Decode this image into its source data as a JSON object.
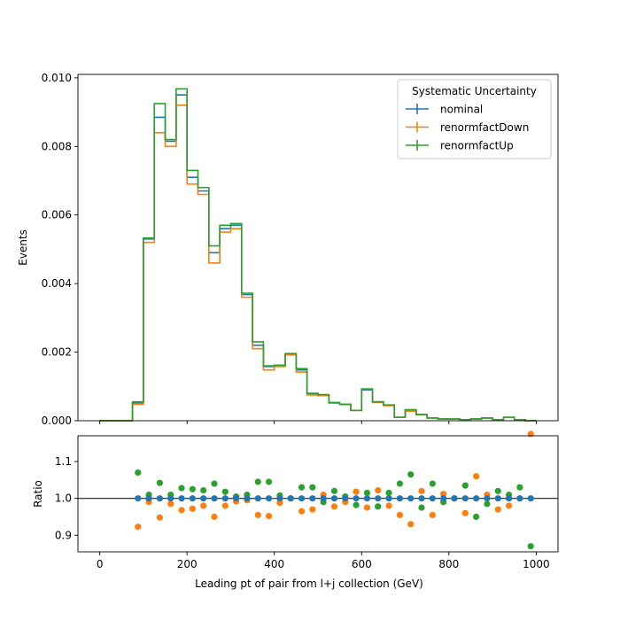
{
  "chart_data": [
    {
      "type": "line",
      "style": "step-histogram",
      "xlabel": "",
      "ylabel": "Events",
      "xlim": [
        -50,
        1050
      ],
      "ylim": [
        0,
        0.0101
      ],
      "x_ticks": [
        "0",
        "200",
        "400",
        "600",
        "800",
        "1000"
      ],
      "x_tick_values": [
        0,
        200,
        400,
        600,
        800,
        1000
      ],
      "y_ticks": [
        "0.000",
        "0.002",
        "0.004",
        "0.006",
        "0.008",
        "0.010"
      ],
      "y_tick_values": [
        0,
        0.002,
        0.004,
        0.006,
        0.008,
        0.01
      ],
      "bin_edges": [
        0,
        25,
        50,
        75,
        100,
        125,
        150,
        175,
        200,
        225,
        250,
        275,
        300,
        325,
        350,
        375,
        400,
        425,
        450,
        475,
        500,
        525,
        550,
        575,
        600,
        625,
        650,
        675,
        700,
        725,
        750,
        775,
        800,
        825,
        850,
        875,
        900,
        925,
        950,
        975,
        1000
      ],
      "legend": {
        "title": "Systematic Uncertainty",
        "placement": "top-right"
      },
      "series": [
        {
          "name": "nominal",
          "color": "#1f77b4",
          "values": [
            0,
            0,
            0,
            0.00052,
            0.0053,
            0.00885,
            0.00815,
            0.0095,
            0.0071,
            0.0067,
            0.0049,
            0.0056,
            0.0057,
            0.00368,
            0.0022,
            0.00158,
            0.0016,
            0.00195,
            0.00148,
            0.00078,
            0.00075,
            0.00052,
            0.00048,
            0.0003,
            0.0009,
            0.00055,
            0.00045,
            0.0001,
            0.0003,
            0.00018,
            8e-05,
            5e-05,
            5e-05,
            3e-05,
            5e-05,
            8e-05,
            3e-05,
            0.0001,
            3e-05,
            0
          ]
        },
        {
          "name": "renormfactDown",
          "color": "#ff7f0e",
          "values": [
            0,
            0,
            0,
            0.00048,
            0.0052,
            0.0084,
            0.008,
            0.0092,
            0.0069,
            0.0066,
            0.0046,
            0.0055,
            0.0056,
            0.0036,
            0.0021,
            0.00148,
            0.00158,
            0.00192,
            0.00142,
            0.00075,
            0.00073,
            0.00051,
            0.00047,
            0.0003,
            0.00092,
            0.00053,
            0.00044,
            0.0001,
            0.00028,
            0.00018,
            8e-05,
            5e-05,
            5e-05,
            3e-05,
            5e-05,
            8e-05,
            3e-05,
            0.0001,
            3e-05,
            0
          ]
        },
        {
          "name": "renormfactUp",
          "color": "#2ca02c",
          "values": [
            0,
            0,
            0,
            0.00055,
            0.00533,
            0.00925,
            0.0082,
            0.00968,
            0.0073,
            0.0068,
            0.0051,
            0.0057,
            0.00575,
            0.00372,
            0.0023,
            0.0016,
            0.00162,
            0.00196,
            0.00152,
            0.0008,
            0.00076,
            0.00053,
            0.00048,
            0.0003,
            0.00093,
            0.00055,
            0.00046,
            0.0001,
            0.00032,
            0.00018,
            8e-05,
            5e-05,
            5e-05,
            3e-05,
            5e-05,
            8e-05,
            3e-05,
            0.0001,
            3e-05,
            0
          ]
        }
      ]
    },
    {
      "type": "scatter",
      "xlabel": "Leading pt of pair from l+j collection (GeV)",
      "ylabel": "Ratio",
      "xlim": [
        -50,
        1050
      ],
      "ylim": [
        0.855,
        1.17
      ],
      "x_ticks": [
        "0",
        "200",
        "400",
        "600",
        "800",
        "1000"
      ],
      "x_tick_values": [
        0,
        200,
        400,
        600,
        800,
        1000
      ],
      "y_ticks": [
        "0.9",
        "1.0",
        "1.1"
      ],
      "y_tick_values": [
        0.9,
        1.0,
        1.1
      ],
      "reference_line": 1.0,
      "x": [
        87.5,
        112.5,
        137.5,
        162.5,
        187.5,
        212.5,
        237.5,
        262.5,
        287.5,
        312.5,
        337.5,
        362.5,
        387.5,
        412.5,
        437.5,
        462.5,
        487.5,
        512.5,
        537.5,
        562.5,
        587.5,
        612.5,
        637.5,
        662.5,
        687.5,
        712.5,
        737.5,
        762.5,
        787.5,
        812.5,
        837.5,
        862.5,
        887.5,
        912.5,
        937.5,
        962.5,
        987.5
      ],
      "series": [
        {
          "name": "nominal",
          "color": "#1f77b4",
          "values": [
            1,
            1,
            1,
            1,
            1,
            1,
            1,
            1,
            1,
            1,
            1,
            1,
            1,
            1,
            1,
            1,
            1,
            1,
            1,
            1,
            1,
            1,
            1,
            1,
            1,
            1,
            1,
            1,
            1,
            1,
            1,
            1,
            1,
            1,
            1,
            1,
            1
          ]
        },
        {
          "name": "renormfactDown",
          "color": "#ff7f0e",
          "values": [
            0.923,
            0.99,
            0.948,
            0.985,
            0.968,
            0.972,
            0.98,
            0.95,
            0.98,
            0.992,
            0.995,
            0.955,
            0.952,
            0.988,
            1.0,
            0.965,
            0.97,
            1.01,
            0.978,
            0.99,
            1.018,
            0.975,
            1.022,
            0.98,
            0.955,
            0.93,
            1.02,
            0.955,
            1.012,
            1.0,
            0.96,
            1.06,
            1.01,
            0.97,
            0.98,
            1.0,
            1.175
          ]
        },
        {
          "name": "renormfactUp",
          "color": "#2ca02c",
          "values": [
            1.07,
            1.01,
            1.042,
            1.01,
            1.028,
            1.025,
            1.022,
            1.04,
            1.018,
            1.005,
            1.01,
            1.045,
            1.045,
            1.008,
            1.0,
            1.03,
            1.03,
            0.99,
            1.02,
            1.005,
            0.982,
            1.015,
            0.978,
            1.015,
            1.04,
            1.065,
            0.975,
            1.04,
            0.99,
            1.0,
            1.035,
            0.95,
            0.985,
            1.02,
            1.01,
            1.03,
            0.87
          ]
        }
      ]
    }
  ]
}
